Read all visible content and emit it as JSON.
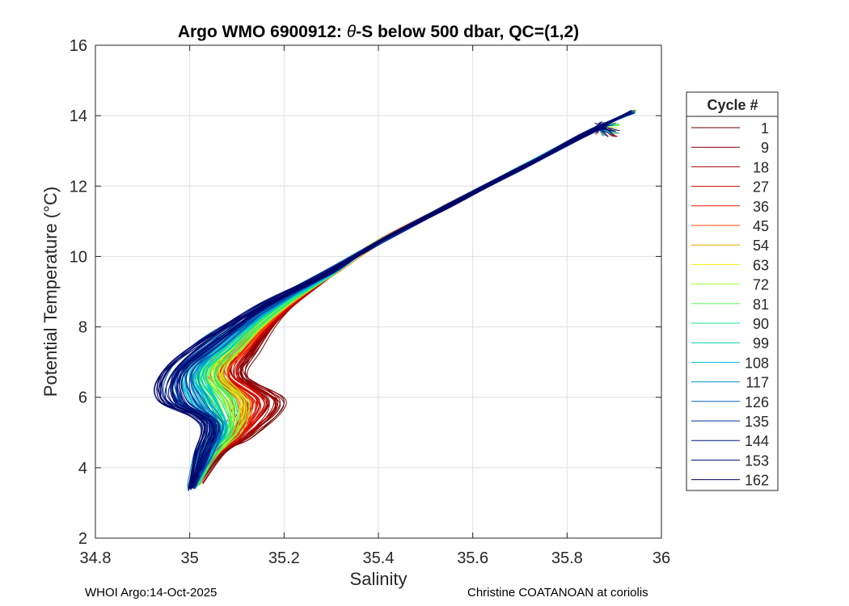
{
  "chart_data": {
    "type": "line",
    "title_prefix": "Argo WMO 6900912: ",
    "title_theta": "θ",
    "title_suffix": "-S below 500 dbar,  QC=(1,2)",
    "xlabel": "Salinity",
    "ylabel": "Potential Temperature (°C)",
    "xlim": [
      34.8,
      36
    ],
    "ylim": [
      2,
      16
    ],
    "xticks": [
      34.8,
      35,
      35.2,
      35.4,
      35.6,
      35.8,
      36
    ],
    "xtick_labels": [
      "34.8",
      "35",
      "35.2",
      "35.4",
      "35.6",
      "35.8",
      "36"
    ],
    "yticks": [
      2,
      4,
      6,
      8,
      10,
      12,
      14,
      16
    ],
    "ytick_labels": [
      "2",
      "4",
      "6",
      "8",
      "10",
      "12",
      "14",
      "16"
    ],
    "grid": true,
    "legend": {
      "title": "Cycle #",
      "placement": "outside-right",
      "entries": [
        {
          "label": "1",
          "color": "#5a0000"
        },
        {
          "label": "9",
          "color": "#7d0000"
        },
        {
          "label": "18",
          "color": "#a50000"
        },
        {
          "label": "27",
          "color": "#cd0000"
        },
        {
          "label": "36",
          "color": "#f51400"
        },
        {
          "label": "45",
          "color": "#ff4600"
        },
        {
          "label": "54",
          "color": "#e6aa00"
        },
        {
          "label": "63",
          "color": "#f0f000"
        },
        {
          "label": "72",
          "color": "#9bff32"
        },
        {
          "label": "81",
          "color": "#5aff5a"
        },
        {
          "label": "90",
          "color": "#14e682"
        },
        {
          "label": "99",
          "color": "#00d2b4"
        },
        {
          "label": "108",
          "color": "#00c3e6"
        },
        {
          "label": "117",
          "color": "#0096c8"
        },
        {
          "label": "126",
          "color": "#0064b9"
        },
        {
          "label": "135",
          "color": "#0032a0"
        },
        {
          "label": "144",
          "color": "#001482"
        },
        {
          "label": "153",
          "color": "#000a6e"
        },
        {
          "label": "162",
          "color": "#000064"
        }
      ]
    },
    "profile_shape": {
      "upper_curve": [
        {
          "s": 35.94,
          "t": 14.12
        },
        {
          "s": 35.85,
          "t": 13.55
        },
        {
          "s": 35.7,
          "t": 12.5
        },
        {
          "s": 35.55,
          "t": 11.45
        },
        {
          "s": 35.4,
          "t": 10.4
        }
      ],
      "warm_member_tail": [
        {
          "s": 35.3,
          "t": 9.5
        },
        {
          "s": 35.2,
          "t": 8.35
        },
        {
          "s": 35.13,
          "t": 7.3
        },
        {
          "s": 35.11,
          "t": 6.6
        },
        {
          "s": 35.19,
          "t": 5.85
        },
        {
          "s": 35.12,
          "t": 4.9
        },
        {
          "s": 35.06,
          "t": 4.45
        },
        {
          "s": 35.02,
          "t": 3.6
        }
      ],
      "cold_member_tail": [
        {
          "s": 35.3,
          "t": 9.6
        },
        {
          "s": 35.15,
          "t": 8.6
        },
        {
          "s": 35.03,
          "t": 7.6
        },
        {
          "s": 34.95,
          "t": 6.7
        },
        {
          "s": 34.94,
          "t": 5.9
        },
        {
          "s": 35.03,
          "t": 5.3
        },
        {
          "s": 35.02,
          "t": 4.4
        },
        {
          "s": 35.0,
          "t": 3.4
        }
      ]
    }
  },
  "footer": {
    "left": "WHOI Argo:14-Oct-2025",
    "right": "Christine COATANOAN at coriolis"
  }
}
